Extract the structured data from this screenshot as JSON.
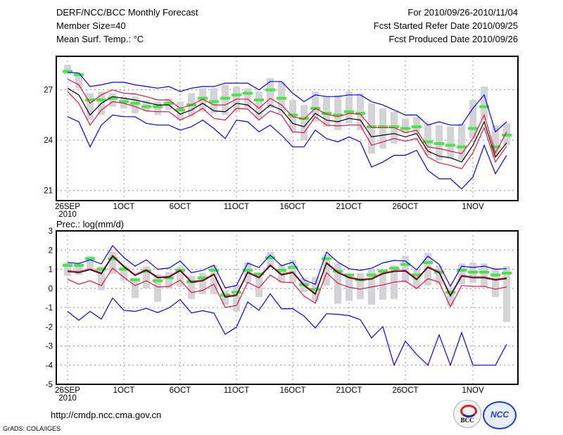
{
  "header": {
    "title": "DERF/NCC/BCC Monthly Forecast",
    "member_size": "Member Size=40",
    "variable": "Mean Surf. Temp.: °C",
    "period": "For 2010/09/26-2010/11/04",
    "fcst_started": "Fcst Started Refer Date 2010/09/25",
    "fcst_produced": "Fcst Produced Date 2010/09/26"
  },
  "footer": {
    "url": "http://cmdp.ncc.cma.gov.cn",
    "credit": "GrADS: COLA/IGES",
    "logo_bcc": "BCC",
    "logo_ncc": "NCC"
  },
  "colors": {
    "mean": "#000000",
    "spread": "#e8103a",
    "extreme": "#0000ff",
    "obs": "#44e844",
    "box": "#d4d4d8",
    "grid": "#888888"
  },
  "chart_data": [
    {
      "type": "line",
      "title": "Mean Surf. Temp.: °C",
      "x_ticks": [
        "26SEP",
        "1OCT",
        "6OCT",
        "11OCT",
        "16OCT",
        "21OCT",
        "26OCT",
        "1NOV"
      ],
      "x_tick_days": [
        0,
        5,
        10,
        15,
        20,
        25,
        30,
        36
      ],
      "x_sublabel": "2010",
      "days": 40,
      "ylim": [
        20.4,
        29.0
      ],
      "y_ticks": [
        21,
        24,
        27
      ],
      "grid": true,
      "series": {
        "mean": [
          27.1,
          26.7,
          25.5,
          26.2,
          26.6,
          26.5,
          26.4,
          26.25,
          26.1,
          26.1,
          25.55,
          25.8,
          26.2,
          25.75,
          25.7,
          26.2,
          26.1,
          25.55,
          26.1,
          25.8,
          25.0,
          24.8,
          25.6,
          25.2,
          25.1,
          25.3,
          25.2,
          24.2,
          24.3,
          24.4,
          24.2,
          24.4,
          23.35,
          23.05,
          22.95,
          22.7,
          23.7,
          25.1,
          23.0,
          23.85
        ],
        "spread_upper": [
          27.64,
          27.3,
          26.2,
          26.7,
          27.0,
          26.8,
          26.75,
          26.6,
          26.4,
          26.4,
          25.9,
          26.1,
          26.45,
          26.1,
          26.1,
          26.45,
          26.45,
          25.9,
          26.5,
          26.1,
          25.4,
          25.25,
          25.9,
          25.55,
          25.4,
          25.6,
          25.55,
          24.75,
          24.75,
          24.75,
          24.45,
          24.6,
          23.6,
          23.5,
          23.35,
          23.2,
          24.1,
          25.5,
          23.25,
          24.5
        ],
        "spread_lower": [
          26.9,
          26.2,
          24.9,
          25.8,
          26.3,
          26.2,
          26.0,
          25.75,
          25.7,
          25.7,
          25.2,
          25.5,
          25.9,
          25.3,
          25.2,
          25.9,
          25.85,
          25.2,
          25.75,
          25.5,
          24.5,
          24.45,
          25.4,
          24.9,
          24.85,
          24.9,
          24.9,
          23.7,
          23.9,
          24.1,
          23.95,
          24.1,
          23.0,
          22.65,
          22.5,
          22.3,
          23.25,
          24.75,
          22.7,
          23.65
        ],
        "max": [
          28.05,
          28.0,
          27.2,
          27.3,
          27.45,
          27.45,
          27.3,
          27.2,
          27.1,
          27.2,
          26.9,
          27.1,
          27.2,
          27.2,
          27.4,
          27.4,
          27.4,
          27.0,
          27.5,
          27.5,
          26.8,
          26.3,
          26.7,
          26.6,
          26.6,
          26.7,
          26.7,
          26.3,
          26.1,
          25.8,
          25.5,
          25.5,
          24.9,
          25.1,
          24.9,
          24.9,
          25.9,
          26.7,
          24.5,
          25.1
        ],
        "min": [
          25.4,
          25.1,
          23.6,
          24.9,
          25.5,
          25.4,
          25.4,
          25.0,
          24.9,
          24.9,
          24.6,
          24.8,
          25.2,
          24.7,
          24.1,
          25.2,
          25.1,
          24.5,
          24.9,
          24.3,
          23.6,
          23.6,
          24.6,
          24.1,
          23.9,
          24.2,
          23.9,
          22.4,
          22.7,
          23.1,
          23.1,
          23.4,
          22.2,
          21.7,
          21.7,
          21.1,
          21.8,
          23.7,
          22.0,
          23.1
        ],
        "obs": [
          28.1,
          27.9,
          26.4,
          26.4,
          26.5,
          26.3,
          26.2,
          26.0,
          26.0,
          26.2,
          25.8,
          26.1,
          26.5,
          26.3,
          26.5,
          26.7,
          26.8,
          26.4,
          27.0,
          26.5,
          25.5,
          25.3,
          25.9,
          25.6,
          25.5,
          25.7,
          25.6,
          24.8,
          24.8,
          24.8,
          24.7,
          24.8,
          23.9,
          23.8,
          23.7,
          23.6,
          24.7,
          26.0,
          23.6,
          24.3
        ],
        "box_low": [
          27.9,
          27.1,
          25.2,
          25.5,
          26.0,
          25.9,
          25.6,
          25.7,
          25.5,
          25.8,
          25.2,
          25.4,
          25.7,
          25.6,
          25.5,
          25.7,
          25.9,
          25.3,
          25.9,
          25.6,
          24.5,
          24.0,
          25.1,
          24.8,
          24.6,
          25.0,
          24.6,
          23.2,
          23.5,
          23.8,
          24.4,
          24.4,
          23.1,
          22.8,
          22.9,
          22.8,
          24.1,
          25.2,
          23.0,
          23.7
        ],
        "box_high": [
          28.5,
          28.0,
          26.8,
          26.9,
          26.8,
          26.6,
          26.6,
          26.4,
          26.3,
          26.5,
          26.3,
          26.8,
          27.1,
          27.1,
          27.3,
          27.2,
          27.1,
          26.9,
          27.7,
          27.5,
          26.4,
          26.1,
          26.9,
          26.6,
          26.7,
          26.9,
          26.8,
          26.2,
          25.9,
          25.7,
          25.3,
          25.4,
          25.0,
          24.9,
          24.8,
          25.0,
          26.4,
          27.2,
          24.9,
          25.0
        ]
      }
    },
    {
      "type": "line",
      "title": "Prec.: log(mm/d)",
      "x_ticks": [
        "26SEP",
        "1OCT",
        "6OCT",
        "11OCT",
        "16OCT",
        "21OCT",
        "26OCT",
        "1NOV"
      ],
      "x_tick_days": [
        0,
        5,
        10,
        15,
        20,
        25,
        30,
        36
      ],
      "x_sublabel": "2010",
      "days": 40,
      "ylim": [
        -5,
        3
      ],
      "y_ticks": [
        3,
        2,
        1,
        0,
        -1,
        -2,
        -3,
        -4,
        -5
      ],
      "grid": true,
      "series": {
        "mean": [
          0.88,
          0.82,
          0.97,
          0.76,
          1.68,
          1.13,
          0.67,
          0.94,
          0.55,
          0.58,
          0.92,
          0.31,
          0.39,
          0.72,
          -0.46,
          -0.37,
          0.82,
          0.55,
          1.19,
          0.7,
          0.82,
          0.15,
          -0.31,
          1.31,
          0.82,
          0.55,
          0.43,
          0.48,
          0.76,
          0.88,
          0.9,
          0.45,
          1.09,
          0.82,
          -0.4,
          0.64,
          0.55,
          0.55,
          0.43,
          0.51
        ],
        "spread_upper": [
          0.93,
          0.87,
          1.02,
          0.81,
          1.73,
          1.18,
          0.72,
          0.99,
          0.6,
          0.63,
          0.97,
          0.36,
          0.44,
          0.77,
          -0.41,
          -0.32,
          0.87,
          0.6,
          1.24,
          0.75,
          0.87,
          0.2,
          -0.26,
          1.36,
          0.87,
          0.6,
          0.48,
          0.53,
          0.81,
          0.93,
          0.95,
          0.5,
          1.14,
          0.87,
          -0.35,
          0.69,
          0.6,
          0.6,
          0.48,
          0.56
        ],
        "spread_lower": [
          0.48,
          0.22,
          0.4,
          0.15,
          1.06,
          0.58,
          0.15,
          0.4,
          0.07,
          0.1,
          0.43,
          -0.22,
          -0.1,
          0.22,
          -0.99,
          -0.89,
          0.31,
          0.03,
          0.7,
          0.33,
          0.3,
          -0.4,
          -0.77,
          0.82,
          0.27,
          0.06,
          -0.04,
          0.08,
          0.18,
          0.33,
          0.39,
          -0.01,
          0.51,
          0.33,
          -0.95,
          0.15,
          0.11,
          0.11,
          -0.04,
          0.08
        ],
        "max": [
          1.35,
          1.3,
          1.49,
          1.28,
          2.23,
          1.61,
          1.16,
          1.49,
          1.0,
          1.06,
          1.43,
          0.82,
          0.94,
          1.21,
          0.03,
          0.15,
          1.32,
          1.09,
          1.74,
          1.18,
          1.37,
          0.45,
          0.21,
          1.9,
          1.37,
          1.03,
          0.94,
          1.05,
          1.33,
          1.46,
          1.43,
          0.97,
          1.68,
          1.25,
          0.11,
          1.16,
          1.09,
          1.16,
          1.0,
          1.03
        ],
        "min": [
          -1.2,
          -1.66,
          -1.2,
          -1.6,
          -0.5,
          -1.14,
          -1.2,
          -1.04,
          -1.26,
          -1.02,
          -0.59,
          -1.28,
          -1.16,
          -1.29,
          -2.39,
          -2.02,
          -0.71,
          -1.14,
          -0.28,
          -1.06,
          -1.06,
          -1.44,
          -2.06,
          -1.32,
          -1.35,
          -1.42,
          -1.63,
          -2.58,
          -1.99,
          -4.0,
          -2.75,
          -3.44,
          -4.0,
          -2.42,
          -4.0,
          -2.3,
          -4.0,
          -4.0,
          -4.0,
          -2.91
        ],
        "obs": [
          1.2,
          1.2,
          1.55,
          1.0,
          1.55,
          1.0,
          0.45,
          0.9,
          0.4,
          0.55,
          0.95,
          0.35,
          0.55,
          0.95,
          -0.35,
          -0.2,
          0.95,
          0.75,
          1.6,
          0.95,
          1.1,
          0.2,
          -0.05,
          1.55,
          0.9,
          0.7,
          0.45,
          0.7,
          0.9,
          1.05,
          1.25,
          0.7,
          1.35,
          0.85,
          -0.2,
          0.95,
          0.85,
          0.85,
          0.7,
          0.8
        ],
        "box_low": [
          0.65,
          0.7,
          0.95,
          -0.1,
          0.75,
          0.4,
          -0.5,
          0.0,
          -0.7,
          0.0,
          0.1,
          -0.55,
          -0.3,
          -0.3,
          -0.85,
          -1.2,
          0.3,
          -0.45,
          1.1,
          0.3,
          0.3,
          -0.2,
          -0.7,
          0.15,
          -0.8,
          -0.65,
          -0.55,
          -0.85,
          -0.6,
          -0.55,
          0.3,
          0.0,
          0.15,
          0.2,
          -0.9,
          0.2,
          0.3,
          0.05,
          -0.45,
          -1.75
        ],
        "box_high": [
          1.35,
          1.3,
          1.7,
          1.15,
          1.9,
          1.15,
          0.55,
          1.15,
          0.75,
          0.85,
          1.15,
          0.65,
          0.8,
          1.2,
          -0.1,
          0.2,
          1.35,
          0.75,
          1.9,
          1.25,
          1.5,
          0.55,
          0.6,
          1.75,
          1.3,
          0.75,
          0.8,
          1.0,
          1.0,
          1.2,
          1.7,
          1.0,
          1.85,
          1.2,
          0.05,
          1.3,
          1.35,
          1.3,
          1.05,
          1.15
        ]
      }
    }
  ]
}
